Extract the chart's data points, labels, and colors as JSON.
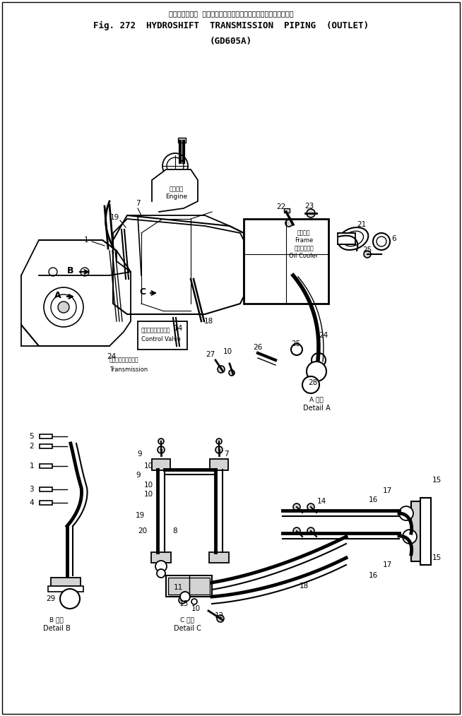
{
  "title_jp": "ハイドロシフト  トランスミッションパイピング（アウトレット）",
  "title_en": "Fig. 272  HYDROSHIFT  TRANSMISSION  PIPING  (OUTLET)",
  "title_model": "(GD605A)",
  "bg_color": "#ffffff",
  "fg_color": "#000000",
  "fig_width": 6.54,
  "fig_height": 10.14,
  "dpi": 100,
  "engine_jp": "エンジン",
  "engine_en": "Engine",
  "frame_jp": "フレーム",
  "frame_en": "Frame",
  "oilcooler_jp": "オイルクーラ",
  "oilcooler_en": "Oil Cooler",
  "controlvalve_jp": "コントロールバルブ",
  "controlvalve_en": "Control Valve",
  "transmission_jp": "トランスミッション",
  "transmission_en": "Transmission",
  "detailA_jp": "A 詳細",
  "detailA_en": "Detail A",
  "detailB_jp": "B 詳細",
  "detailB_en": "Detail B",
  "detailC_jp": "C 詳細",
  "detailC_en": "Detail C"
}
